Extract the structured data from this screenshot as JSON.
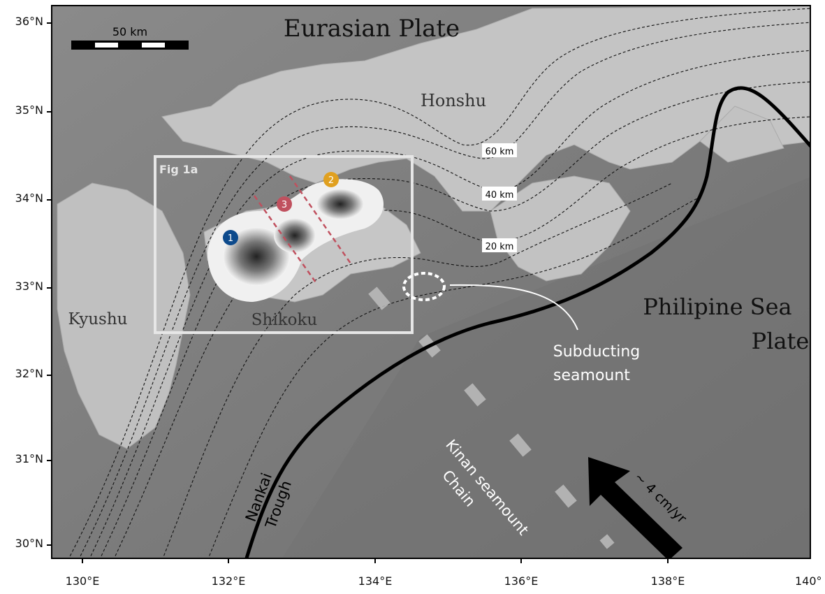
{
  "map": {
    "title_plate_north": "Eurasian Plate",
    "title_plate_south_line1": "Philipine Sea",
    "title_plate_south_line2": "Plate",
    "land_labels": {
      "honshu": "Honshu",
      "kyushu": "Kyushu",
      "shikoku": "Shikoku"
    },
    "scale_bar_label": "50 km",
    "inset_box_label": "Fig 1a",
    "depth_contour_labels": [
      "60 km",
      "40 km",
      "20 km"
    ],
    "markers": [
      {
        "label": "1",
        "color": "#0d4a8c"
      },
      {
        "label": "2",
        "color": "#e0a020"
      },
      {
        "label": "3",
        "color": "#c0505e"
      }
    ],
    "seamount_annotation_line1": "Subducting",
    "seamount_annotation_line2": "seamount",
    "trench_label_line1": "Nankai",
    "trench_label_line2": "Trough",
    "chain_label_line1": "Kinan seamount",
    "chain_label_line2": "Chain",
    "velocity_label": "~ 4 cm/yr",
    "colors": {
      "sea": "#7a7a7a",
      "land": "#c8c8c8",
      "trench": "#000000",
      "profile_lines": "#c0505e"
    }
  },
  "axes": {
    "y_ticks": [
      "36°N",
      "35°N",
      "34°N",
      "33°N",
      "32°N",
      "31°N",
      "30°N"
    ],
    "x_ticks": [
      "130°E",
      "132°E",
      "134°E",
      "136°E",
      "138°E",
      "140°"
    ]
  }
}
